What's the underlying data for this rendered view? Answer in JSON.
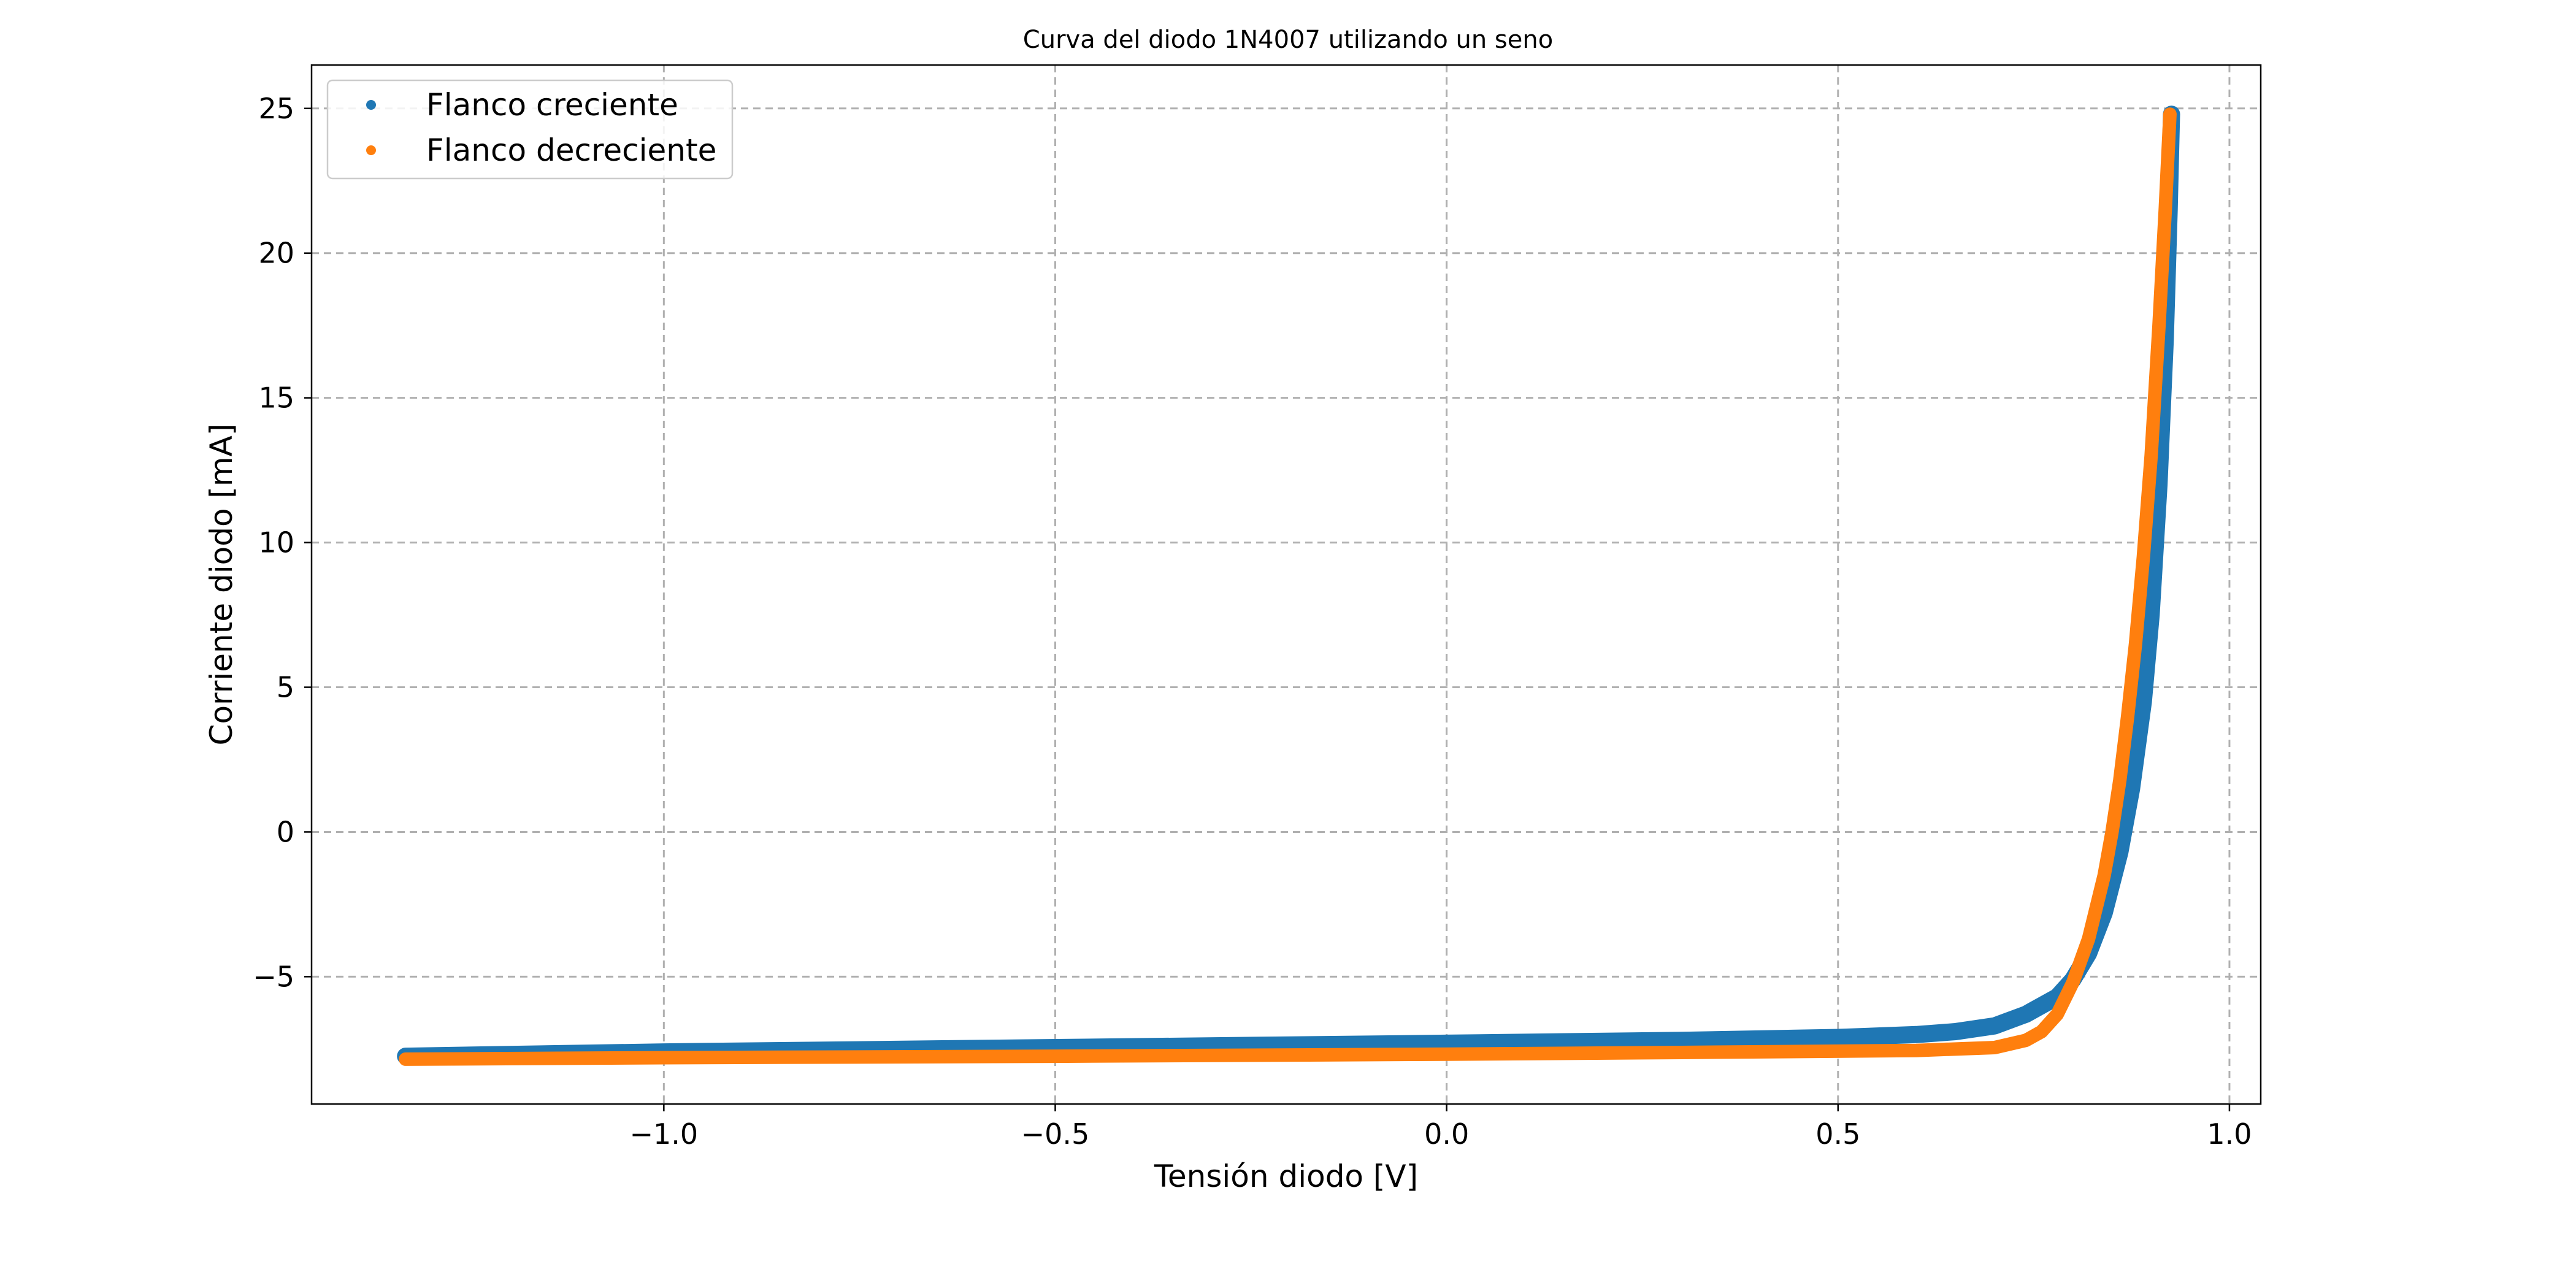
{
  "chart_data": {
    "type": "scatter",
    "title": "Curva del diodo 1N4007 utilizando un seno",
    "xlabel": "Tensión diodo [V]",
    "ylabel": "Corriente diodo [mA]",
    "xlim": [
      -1.45,
      1.04
    ],
    "ylim": [
      -9.4,
      26.5
    ],
    "xticks": [
      -1.0,
      -0.5,
      0.0,
      0.5,
      1.0
    ],
    "xtick_labels": [
      "−1.0",
      "−0.5",
      "0.0",
      "0.5",
      "1.0"
    ],
    "yticks": [
      -5,
      0,
      5,
      10,
      15,
      20,
      25
    ],
    "ytick_labels": [
      "−5",
      "0",
      "5",
      "10",
      "15",
      "20",
      "25"
    ],
    "grid": true,
    "legend_position": "top-left",
    "series": [
      {
        "name": "Flanco creciente",
        "color": "#1f77b4",
        "points": [
          [
            -1.33,
            -7.75
          ],
          [
            -1.0,
            -7.6
          ],
          [
            -0.5,
            -7.45
          ],
          [
            0.0,
            -7.3
          ],
          [
            0.3,
            -7.2
          ],
          [
            0.5,
            -7.1
          ],
          [
            0.6,
            -7.0
          ],
          [
            0.65,
            -6.9
          ],
          [
            0.7,
            -6.7
          ],
          [
            0.74,
            -6.3
          ],
          [
            0.78,
            -5.7
          ],
          [
            0.8,
            -5.1
          ],
          [
            0.82,
            -4.2
          ],
          [
            0.84,
            -2.8
          ],
          [
            0.86,
            -0.7
          ],
          [
            0.875,
            1.5
          ],
          [
            0.89,
            4.5
          ],
          [
            0.9,
            7.5
          ],
          [
            0.91,
            12.0
          ],
          [
            0.918,
            17.0
          ],
          [
            0.923,
            21.5
          ],
          [
            0.926,
            24.8
          ]
        ]
      },
      {
        "name": "Flanco decreciente",
        "color": "#ff7f0e",
        "points": [
          [
            0.924,
            24.8
          ],
          [
            0.918,
            21.5
          ],
          [
            0.91,
            17.5
          ],
          [
            0.9,
            13.0
          ],
          [
            0.89,
            9.5
          ],
          [
            0.88,
            6.5
          ],
          [
            0.87,
            4.0
          ],
          [
            0.86,
            1.8
          ],
          [
            0.85,
            0.0
          ],
          [
            0.84,
            -1.5
          ],
          [
            0.82,
            -3.7
          ],
          [
            0.8,
            -5.2
          ],
          [
            0.78,
            -6.3
          ],
          [
            0.76,
            -6.9
          ],
          [
            0.74,
            -7.2
          ],
          [
            0.7,
            -7.45
          ],
          [
            0.6,
            -7.55
          ],
          [
            0.3,
            -7.62
          ],
          [
            0.0,
            -7.68
          ],
          [
            -0.5,
            -7.75
          ],
          [
            -1.0,
            -7.8
          ],
          [
            -1.33,
            -7.85
          ]
        ]
      }
    ]
  }
}
